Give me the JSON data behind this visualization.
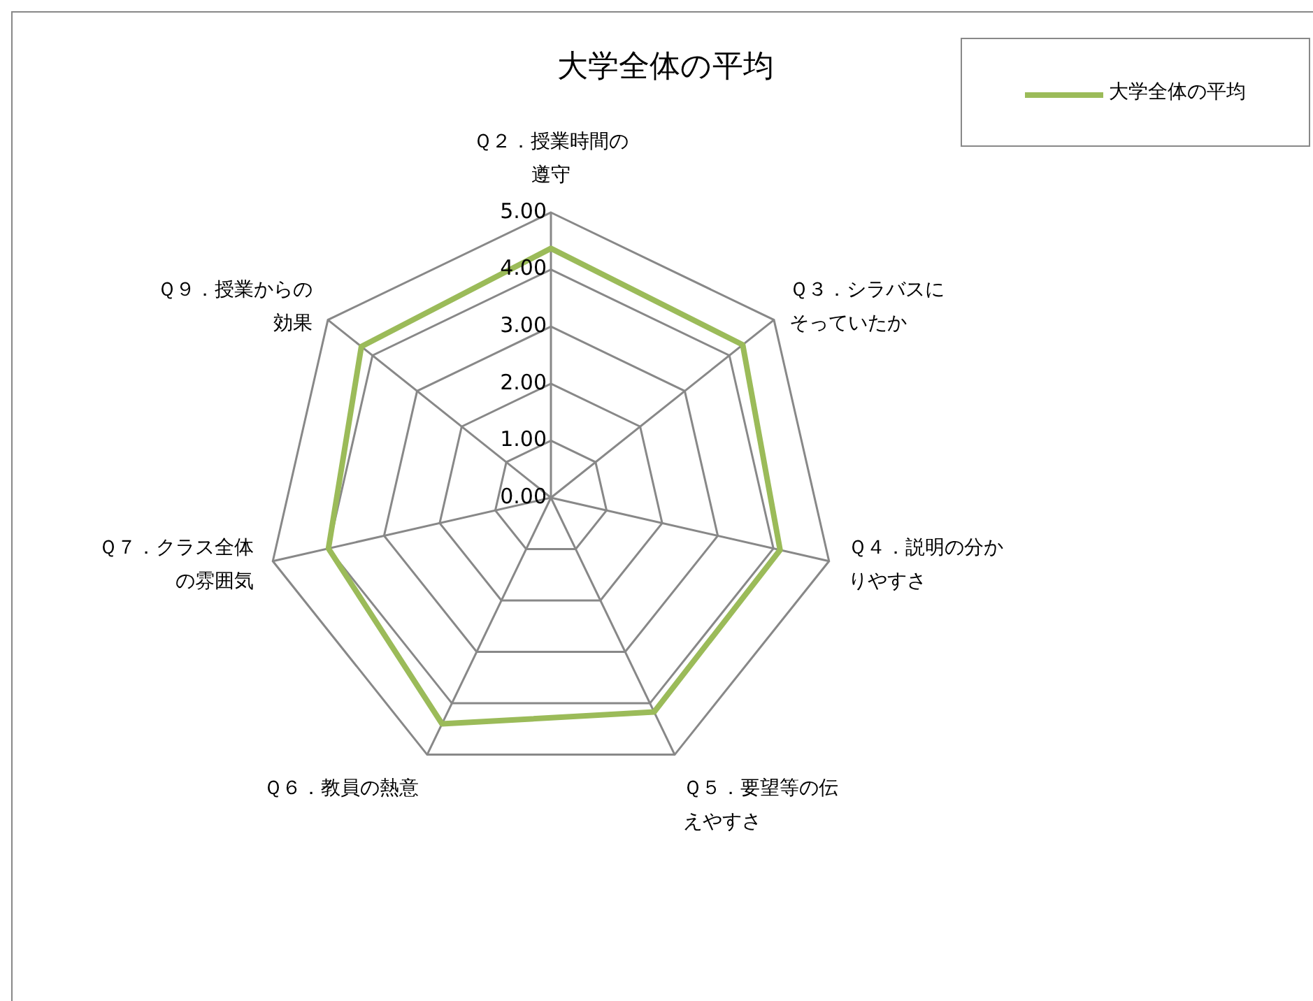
{
  "chart_data": {
    "type": "radar",
    "title": "大学全体の平均",
    "categories": [
      "Ｑ２．授業時間の遵守",
      "Ｑ３．シラバスにそっていたか",
      "Ｑ４．説明の分かりやすさ",
      "Ｑ５．要望等の伝えやすさ",
      "Ｑ６．教員の熱意",
      "Ｑ７．クラス全体の雰囲気",
      "Ｑ９．授業からの効果"
    ],
    "series": [
      {
        "name": "大学全体の平均",
        "color": "#9bbb59",
        "values": [
          4.37,
          4.3,
          4.12,
          4.17,
          4.4,
          4.0,
          4.25
        ]
      }
    ],
    "ylim": [
      0,
      5
    ],
    "yticks": [
      {
        "value": 0,
        "label": "0.00"
      },
      {
        "value": 1,
        "label": "1.00"
      },
      {
        "value": 2,
        "label": "2.00"
      },
      {
        "value": 3,
        "label": "3.00"
      },
      {
        "value": 4,
        "label": "4.00"
      },
      {
        "value": 5,
        "label": "5.00"
      }
    ],
    "grid": true,
    "legend": "top right",
    "marker": "none",
    "line_style": "solid"
  }
}
